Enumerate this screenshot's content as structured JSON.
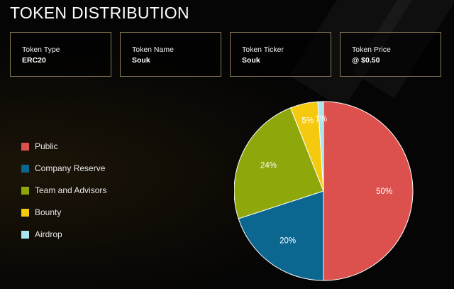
{
  "page": {
    "title": "TOKEN DISTRIBUTION"
  },
  "cards": [
    {
      "label": "Token Type",
      "value": "ERC20"
    },
    {
      "label": "Token Name",
      "value": "Souk"
    },
    {
      "label": "Token Ticker",
      "value": "Souk"
    },
    {
      "label": "Token Price",
      "value": "@ $0.50"
    }
  ],
  "chart_data": {
    "type": "pie",
    "title": "",
    "legend_position": "left",
    "slices": [
      {
        "name": "Public",
        "value": 50,
        "label": "50%",
        "color": "#dc514d"
      },
      {
        "name": "Company Reserve",
        "value": 20,
        "label": "20%",
        "color": "#0b6690"
      },
      {
        "name": "Team and Advisors",
        "value": 24,
        "label": "24%",
        "color": "#8ea70b"
      },
      {
        "name": "Bounty",
        "value": 5,
        "label": "5%",
        "color": "#f5c90e"
      },
      {
        "name": "Airdrop",
        "value": 1,
        "label": "1%",
        "color": "#a9e4ef"
      }
    ]
  }
}
